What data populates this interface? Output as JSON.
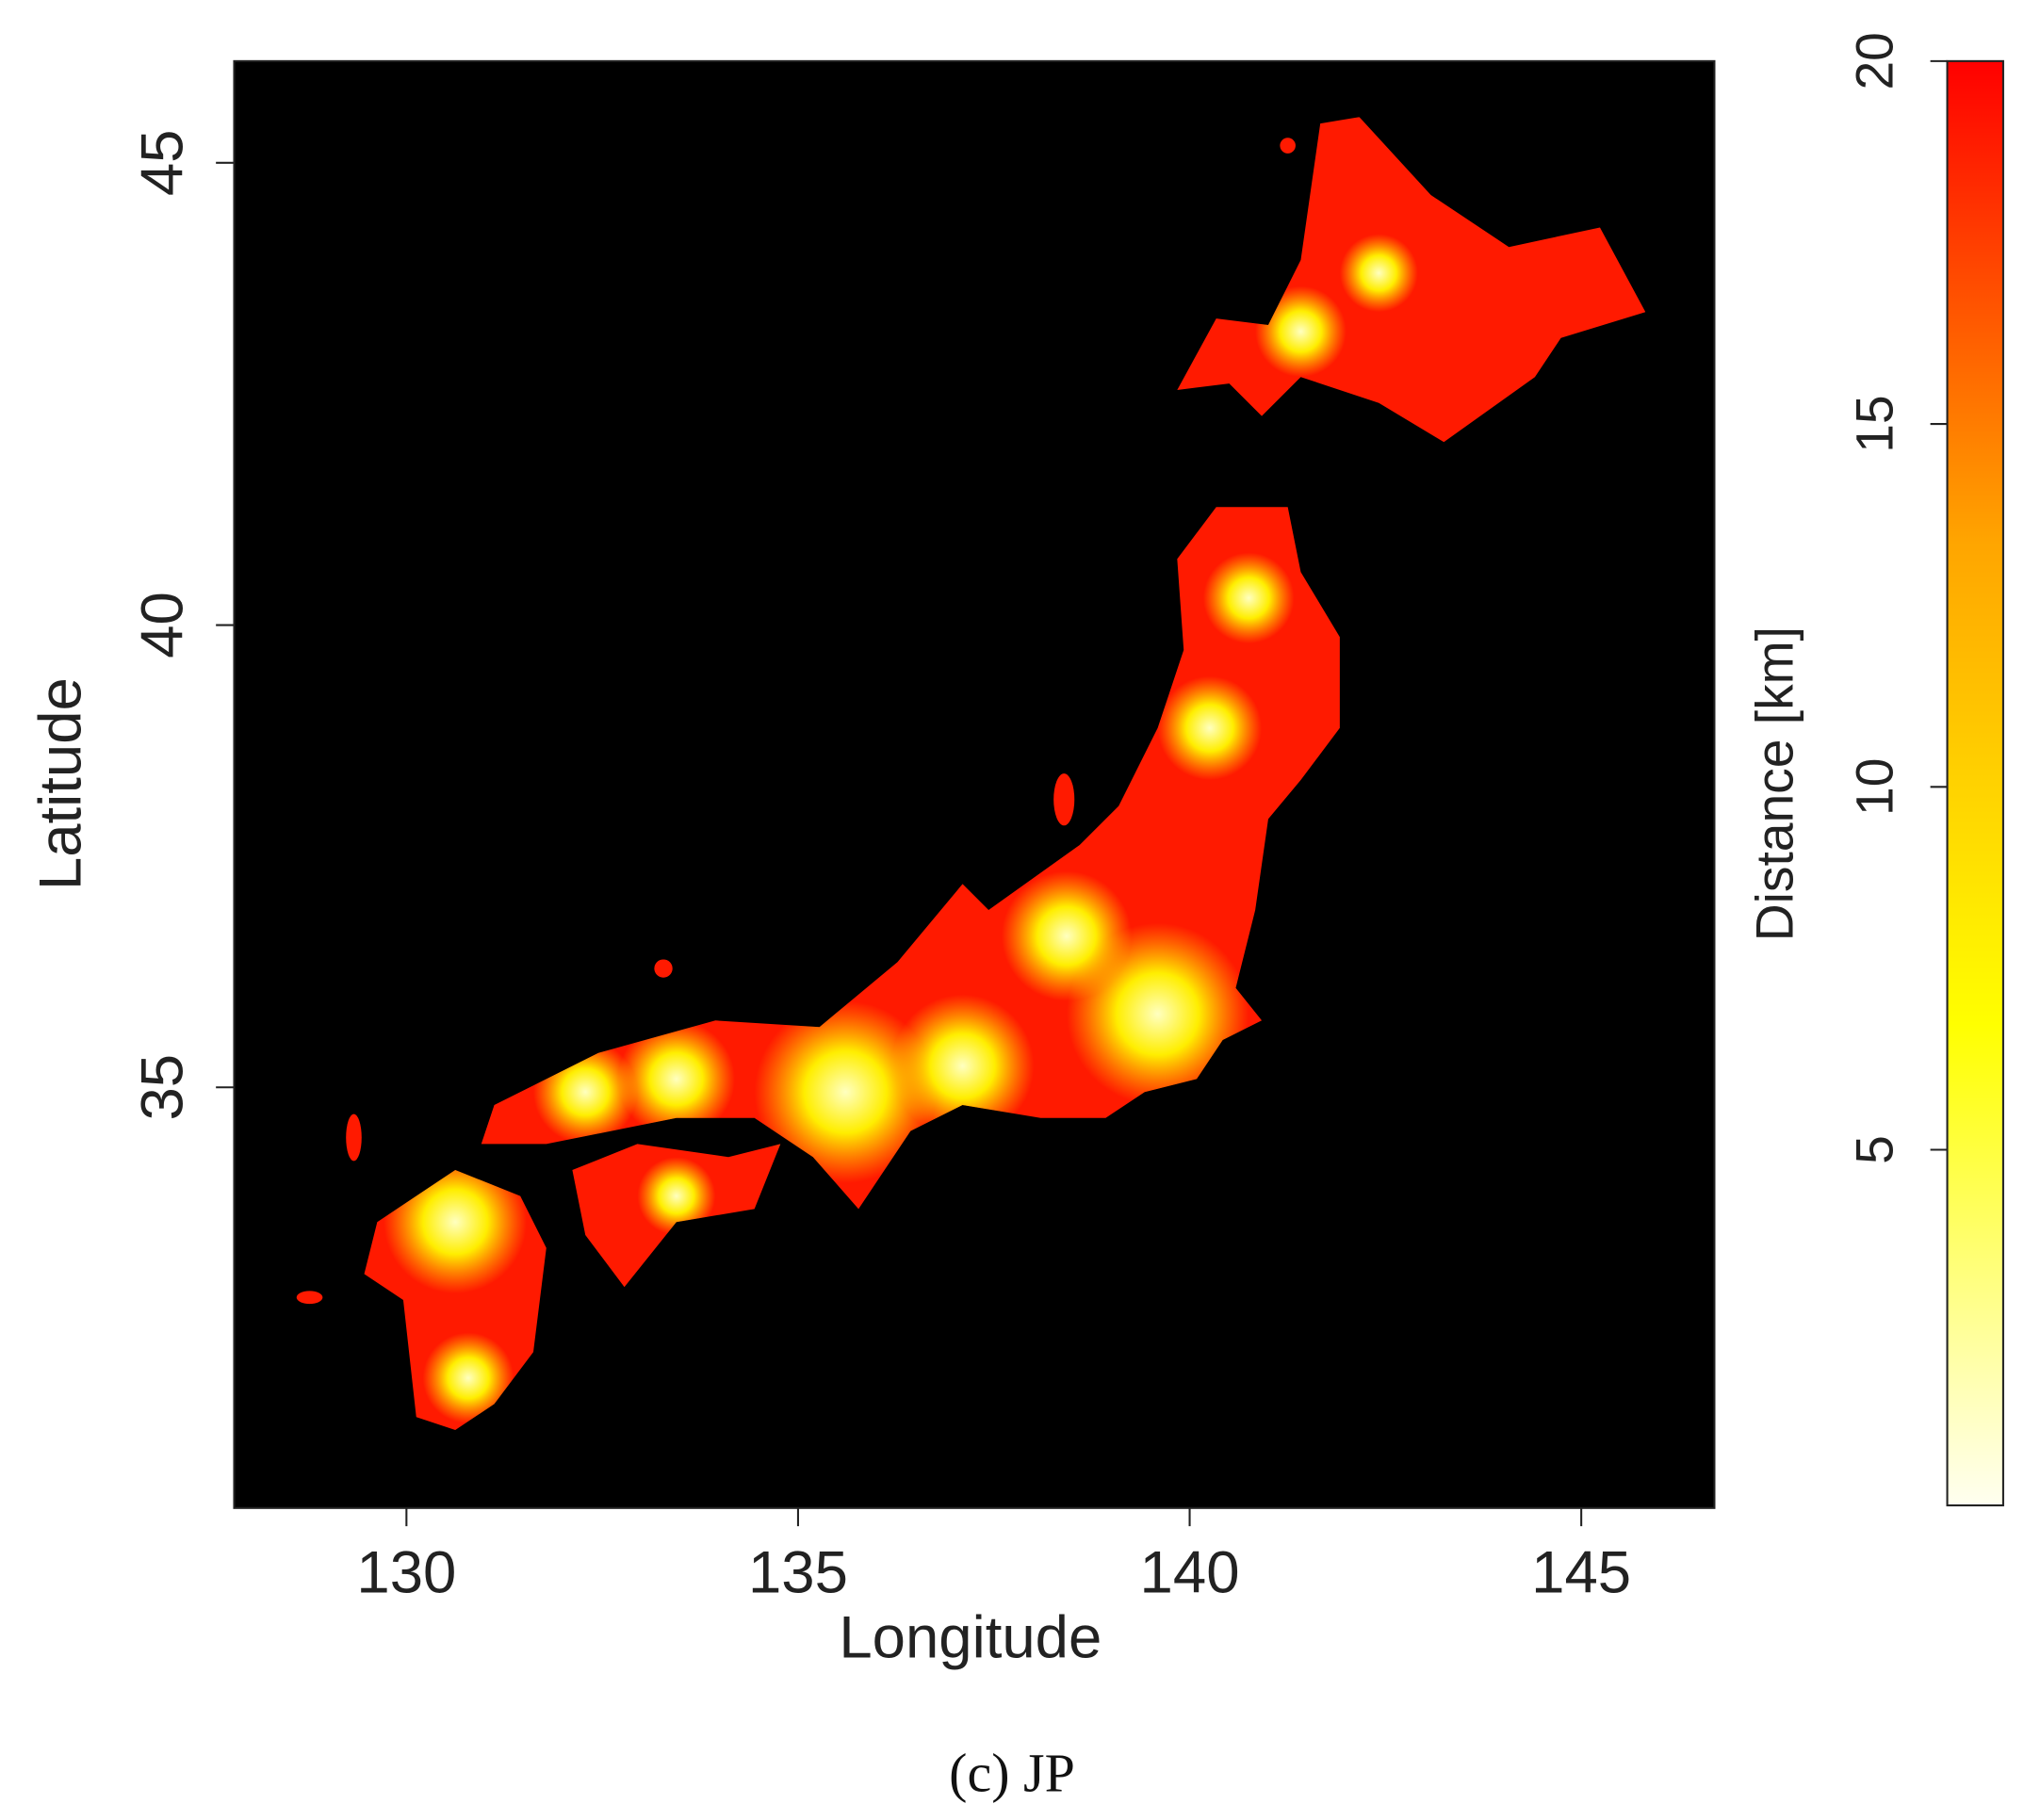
{
  "chart_data": {
    "type": "map",
    "xlabel": "Longitude",
    "ylabel": "Latitude",
    "xlim": [
      127.8,
      146.7
    ],
    "ylim": [
      30.45,
      46.1
    ],
    "xticks": [
      130,
      135,
      140,
      145
    ],
    "yticks": [
      35,
      40,
      45
    ],
    "colorbar": {
      "label": "Distance [km]",
      "lim": [
        0.1,
        20
      ],
      "ticks": [
        5,
        10,
        15,
        20
      ],
      "colors": [
        "#fffff0",
        "#ffff00",
        "#ffa500",
        "#ff0000"
      ]
    },
    "caption": "(c) JP"
  }
}
